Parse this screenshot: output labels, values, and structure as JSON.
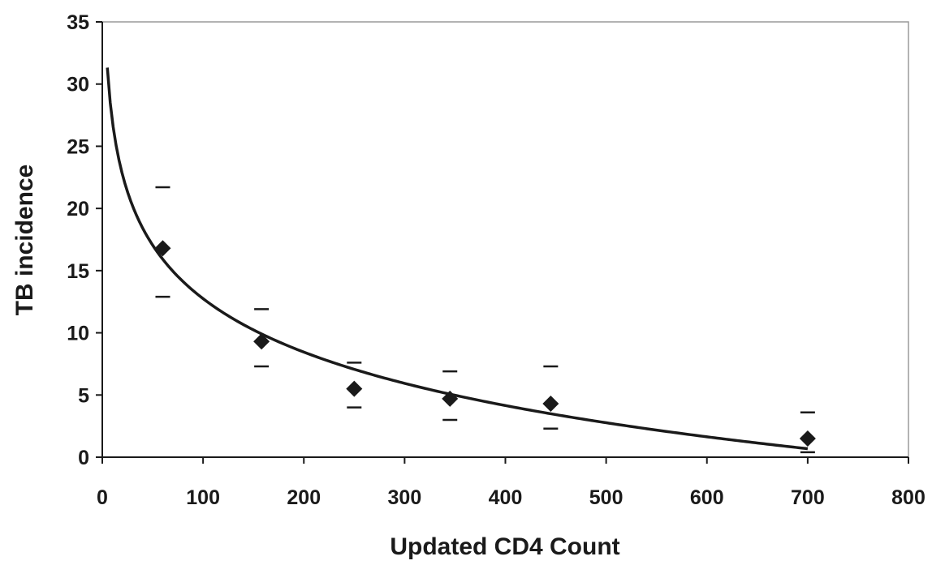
{
  "chart_data": {
    "type": "scatter",
    "xlabel": "Updated CD4 Count",
    "ylabel": "TB incidence",
    "xlim": [
      0,
      800
    ],
    "ylim": [
      0,
      35
    ],
    "xticks": [
      0,
      100,
      200,
      300,
      400,
      500,
      600,
      700,
      800
    ],
    "yticks": [
      0,
      5,
      10,
      15,
      20,
      25,
      30,
      35
    ],
    "xtick_labels": [
      "0",
      "100",
      "200",
      "300",
      "400",
      "500",
      "600",
      "700",
      "800"
    ],
    "ytick_labels": [
      "0",
      "5",
      "10",
      "15",
      "20",
      "25",
      "30",
      "35"
    ],
    "grid": false,
    "legend": "none",
    "series": [
      {
        "marker": "diamond",
        "x": [
          60,
          158,
          250,
          345,
          445,
          700
        ],
        "y": [
          16.8,
          9.3,
          5.5,
          4.7,
          4.3,
          1.5
        ],
        "upper": [
          21.7,
          11.9,
          7.6,
          6.9,
          7.3,
          3.6
        ],
        "lower": [
          12.9,
          7.3,
          4.0,
          3.0,
          2.3,
          0.4
        ]
      }
    ],
    "fit_curve": {
      "type": "logarithmic",
      "x_range": [
        5,
        700
      ],
      "a": 41.3,
      "b": -6.2
    }
  }
}
